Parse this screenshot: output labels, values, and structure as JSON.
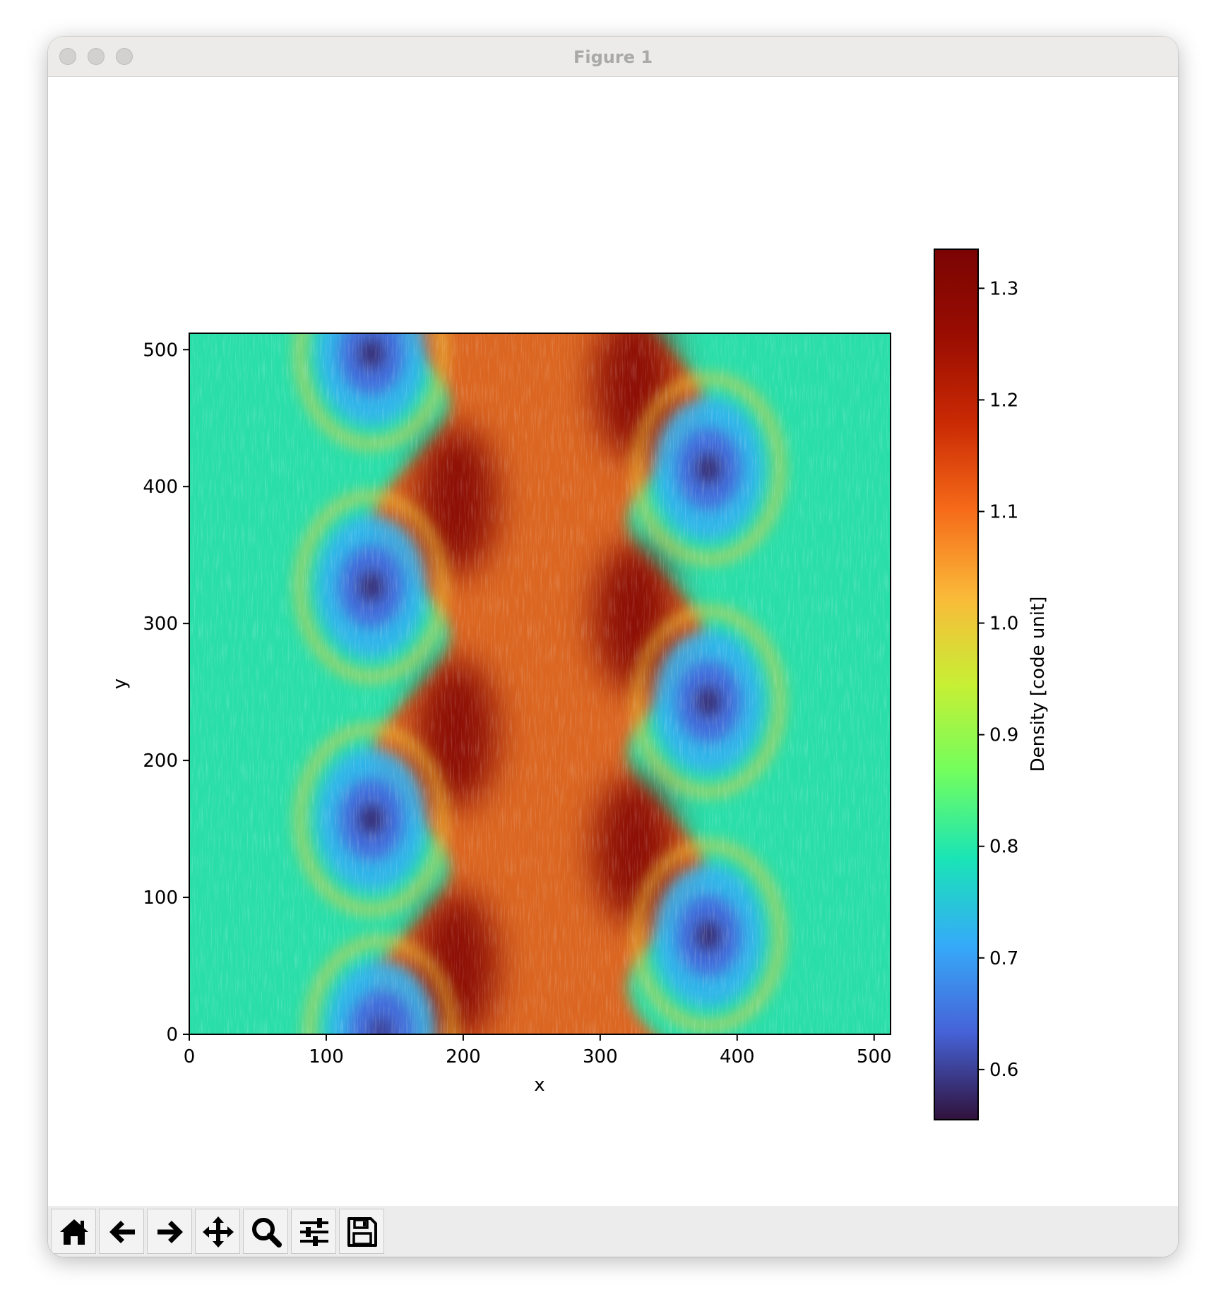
{
  "window": {
    "title": "Figure 1",
    "traffic_lights": [
      "close",
      "minimize",
      "zoom"
    ]
  },
  "toolbar": {
    "buttons": [
      {
        "name": "home",
        "icon": "home-icon"
      },
      {
        "name": "back",
        "icon": "arrow-left-icon"
      },
      {
        "name": "forward",
        "icon": "arrow-right-icon"
      },
      {
        "name": "pan",
        "icon": "move-icon"
      },
      {
        "name": "zoom",
        "icon": "magnifier-icon"
      },
      {
        "name": "configure-subplots",
        "icon": "sliders-icon"
      },
      {
        "name": "save",
        "icon": "floppy-disk-icon"
      }
    ]
  },
  "chart_data": {
    "type": "heatmap",
    "xlabel": "x",
    "ylabel": "y",
    "xlim": [
      0,
      512
    ],
    "ylim": [
      0,
      512
    ],
    "xticks": [
      0,
      100,
      200,
      300,
      400,
      500
    ],
    "yticks": [
      0,
      100,
      200,
      300,
      400,
      500
    ],
    "overlay": "line-integral-convolution streamlines",
    "colormap": "turbo",
    "colorbar": {
      "label": "Density [code unit]",
      "range": [
        0.555,
        1.335
      ],
      "ticks": [
        0.6,
        0.7,
        0.8,
        0.9,
        1.0,
        1.1,
        1.2,
        1.3
      ],
      "tick_labels": [
        "0.6",
        "0.7",
        "0.8",
        "0.9",
        "1.0",
        "1.1",
        "1.2",
        "1.3"
      ],
      "placement": "right"
    },
    "background_density": 0.8,
    "band_density": 1.12,
    "vortex_cores": [
      {
        "x": 133,
        "y": 497,
        "density": 0.58
      },
      {
        "x": 133,
        "y": 327,
        "density": 0.58
      },
      {
        "x": 133,
        "y": 157,
        "density": 0.58
      },
      {
        "x": 140,
        "y": 2,
        "density": 0.6
      },
      {
        "x": 379,
        "y": 413,
        "density": 0.58
      },
      {
        "x": 379,
        "y": 243,
        "density": 0.58
      },
      {
        "x": 379,
        "y": 72,
        "density": 0.58
      }
    ],
    "density_peaks": [
      {
        "x": 195,
        "y": 390,
        "density": 1.32
      },
      {
        "x": 195,
        "y": 220,
        "density": 1.32
      },
      {
        "x": 195,
        "y": 50,
        "density": 1.32
      },
      {
        "x": 325,
        "y": 475,
        "density": 1.32
      },
      {
        "x": 325,
        "y": 305,
        "density": 1.32
      },
      {
        "x": 325,
        "y": 135,
        "density": 1.32
      }
    ]
  }
}
